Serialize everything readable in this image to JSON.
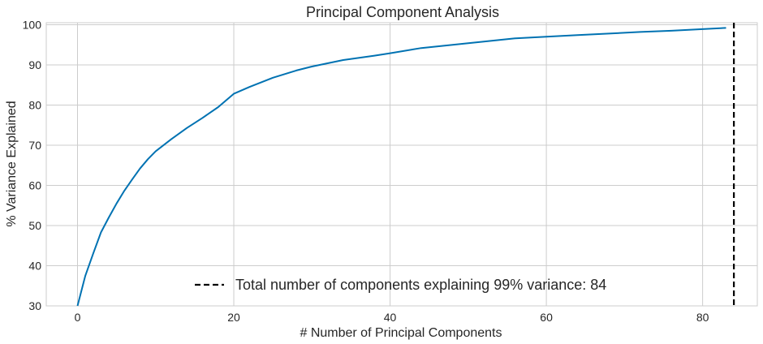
{
  "chart_data": {
    "type": "line",
    "title": "Principal Component Analysis",
    "xlabel": "# Number of Principal Components",
    "ylabel": "% Variance Explained",
    "xlim": [
      -4,
      87
    ],
    "ylim": [
      30,
      100.5
    ],
    "xticks": [
      0,
      20,
      40,
      60,
      80
    ],
    "yticks": [
      30,
      40,
      50,
      60,
      70,
      80,
      90,
      100
    ],
    "grid": true,
    "legend_position": "bottom-center",
    "series": [
      {
        "color": "#0072b2",
        "x": [
          0,
          1,
          2,
          3,
          4,
          5,
          6,
          7,
          8,
          9,
          10,
          12,
          14,
          16,
          18,
          20,
          22,
          25,
          28,
          30,
          34,
          38,
          40,
          44,
          48,
          52,
          56,
          60,
          64,
          68,
          72,
          76,
          80,
          83
        ],
        "y": [
          30.0,
          37.5,
          43.0,
          48.3,
          52.0,
          55.5,
          58.7,
          61.5,
          64.2,
          66.5,
          68.5,
          71.5,
          74.3,
          76.8,
          79.5,
          82.8,
          84.5,
          86.8,
          88.6,
          89.6,
          91.2,
          92.3,
          92.9,
          94.2,
          95.0,
          95.8,
          96.6,
          97.0,
          97.4,
          97.8,
          98.2,
          98.5,
          98.9,
          99.2
        ]
      }
    ],
    "threshold_line": {
      "x": 84,
      "color": "#000000",
      "label": "Total number of components explaining 99% variance: 84"
    }
  }
}
